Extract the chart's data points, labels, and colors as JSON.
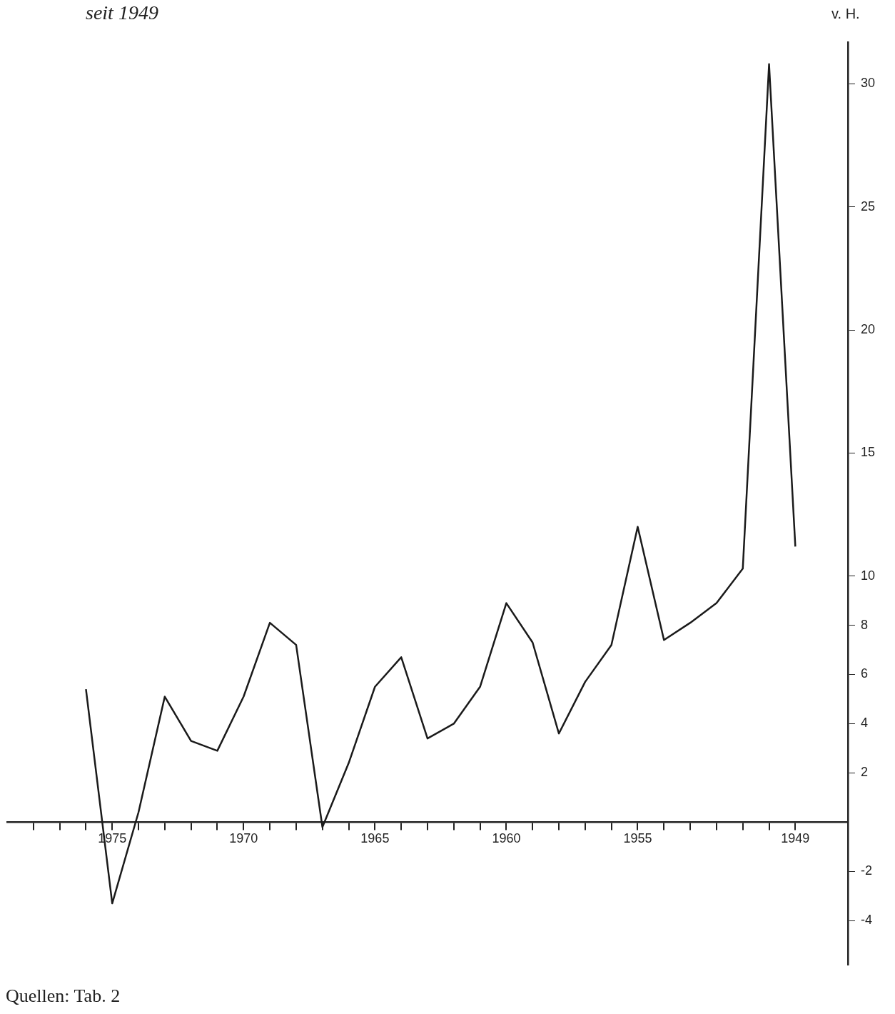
{
  "chart_data": {
    "type": "line",
    "title": "seit 1949",
    "ylabel": "v. H.",
    "annotations": [
      "Quellen: Tab. 2"
    ],
    "x": [
      1949,
      1950,
      1951,
      1952,
      1953,
      1954,
      1955,
      1956,
      1957,
      1958,
      1959,
      1960,
      1961,
      1962,
      1963,
      1964,
      1965,
      1966,
      1967,
      1968,
      1969,
      1970,
      1971,
      1972,
      1973,
      1974,
      1975,
      1976
    ],
    "series": [
      {
        "color": "#1a1a1a",
        "values": [
          11.2,
          30.8,
          10.3,
          8.9,
          8.1,
          7.4,
          12.0,
          7.2,
          5.7,
          3.6,
          7.3,
          8.9,
          5.5,
          4.0,
          3.4,
          6.7,
          5.5,
          2.4,
          -0.2,
          7.2,
          8.1,
          5.1,
          2.9,
          3.3,
          5.1,
          0.4,
          -3.3,
          5.4
        ]
      }
    ],
    "xlim": [
      1979,
      1947
    ],
    "xticks": [
      1949,
      {
        "value": 1950,
        "label": null
      },
      {
        "value": 1951,
        "label": null
      },
      {
        "value": 1952,
        "label": null
      },
      {
        "value": 1953,
        "label": null
      },
      {
        "value": 1954,
        "label": null
      },
      1955,
      {
        "value": 1956,
        "label": null
      },
      {
        "value": 1957,
        "label": null
      },
      {
        "value": 1958,
        "label": null
      },
      {
        "value": 1959,
        "label": null
      },
      1960,
      {
        "value": 1961,
        "label": null
      },
      {
        "value": 1962,
        "label": null
      },
      {
        "value": 1963,
        "label": null
      },
      {
        "value": 1964,
        "label": null
      },
      1965,
      {
        "value": 1966,
        "label": null
      },
      {
        "value": 1967,
        "label": null
      },
      {
        "value": 1968,
        "label": null
      },
      {
        "value": 1969,
        "label": null
      },
      1970,
      {
        "value": 1971,
        "label": null
      },
      {
        "value": 1972,
        "label": null
      },
      {
        "value": 1973,
        "label": null
      },
      {
        "value": 1974,
        "label": null
      },
      1975,
      {
        "value": 1976,
        "label": null
      },
      {
        "value": 1977,
        "label": null
      },
      {
        "value": 1978,
        "label": null
      }
    ],
    "ylim": [
      -5.8,
      31.7
    ],
    "yticks": [
      -4,
      -2,
      2,
      4,
      6,
      8,
      10,
      15,
      20,
      25,
      30
    ],
    "grid": false,
    "legend": false,
    "marker": "none",
    "line_style": "solid"
  }
}
